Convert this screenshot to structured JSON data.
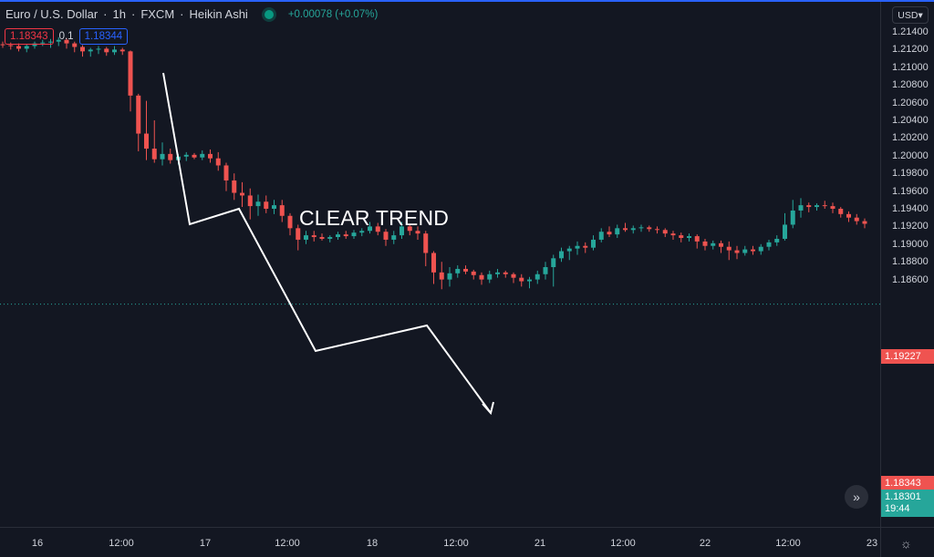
{
  "header": {
    "symbol": "Euro / U.S. Dollar",
    "interval": "1h",
    "exchange": "FXCM",
    "chart_style": "Heikin Ashi",
    "change": "+0.00078 (+0.07%)"
  },
  "trade": {
    "sell_price": "1.18343",
    "spread": "0.1",
    "buy_price": "1.18344"
  },
  "currency_button": "USD",
  "price_axis": [
    "1.21400",
    "1.21200",
    "1.21000",
    "1.20800",
    "1.20600",
    "1.20400",
    "1.20200",
    "1.20000",
    "1.19800",
    "1.19600",
    "1.19400",
    "1.19200",
    "1.19000",
    "1.18800",
    "1.18600"
  ],
  "tags": {
    "last_ha": "1.19227",
    "last_price": "1.18343",
    "bid": "1.18301",
    "countdown": "19:44"
  },
  "time_axis": [
    "16",
    "12:00",
    "17",
    "12:00",
    "18",
    "12:00",
    "21",
    "12:00",
    "22",
    "12:00",
    "23"
  ],
  "annotation": "CLEAR TREND",
  "colors": {
    "up": "#26a69a",
    "down": "#ef5350",
    "background": "#131722",
    "annotation": "#ffffff"
  },
  "icons": {
    "scroll": "double-chevron-right-icon",
    "settings": "gear-icon"
  },
  "chart_data": {
    "type": "candlestick",
    "style": "Heikin Ashi",
    "ylim": [
      1.18,
      1.216
    ],
    "candles": [
      {
        "o": 1.2126,
        "h": 1.2129,
        "l": 1.2122,
        "c": 1.2125
      },
      {
        "o": 1.2125,
        "h": 1.2128,
        "l": 1.212,
        "c": 1.2124
      },
      {
        "o": 1.2124,
        "h": 1.2127,
        "l": 1.2118,
        "c": 1.2121
      },
      {
        "o": 1.2121,
        "h": 1.2126,
        "l": 1.2117,
        "c": 1.2124
      },
      {
        "o": 1.2124,
        "h": 1.2129,
        "l": 1.2121,
        "c": 1.2127
      },
      {
        "o": 1.2127,
        "h": 1.2131,
        "l": 1.2124,
        "c": 1.2128
      },
      {
        "o": 1.2128,
        "h": 1.2132,
        "l": 1.2122,
        "c": 1.2129
      },
      {
        "o": 1.2129,
        "h": 1.2134,
        "l": 1.2124,
        "c": 1.2131
      },
      {
        "o": 1.2131,
        "h": 1.2133,
        "l": 1.2121,
        "c": 1.2127
      },
      {
        "o": 1.2127,
        "h": 1.2129,
        "l": 1.2117,
        "c": 1.2123
      },
      {
        "o": 1.2123,
        "h": 1.2125,
        "l": 1.2112,
        "c": 1.2118
      },
      {
        "o": 1.2118,
        "h": 1.2122,
        "l": 1.2112,
        "c": 1.212
      },
      {
        "o": 1.212,
        "h": 1.2124,
        "l": 1.2115,
        "c": 1.2121
      },
      {
        "o": 1.2121,
        "h": 1.2123,
        "l": 1.2113,
        "c": 1.2117
      },
      {
        "o": 1.2117,
        "h": 1.2124,
        "l": 1.2114,
        "c": 1.212
      },
      {
        "o": 1.212,
        "h": 1.2122,
        "l": 1.2114,
        "c": 1.2118
      },
      {
        "o": 1.2118,
        "h": 1.2119,
        "l": 1.205,
        "c": 1.2068
      },
      {
        "o": 1.2068,
        "h": 1.207,
        "l": 1.2005,
        "c": 1.2025
      },
      {
        "o": 1.2025,
        "h": 1.2062,
        "l": 1.1995,
        "c": 1.2008
      },
      {
        "o": 1.2008,
        "h": 1.204,
        "l": 1.1992,
        "c": 1.1996
      },
      {
        "o": 1.1996,
        "h": 1.2015,
        "l": 1.1989,
        "c": 1.2002
      },
      {
        "o": 1.2002,
        "h": 1.2008,
        "l": 1.1991,
        "c": 1.1995
      },
      {
        "o": 1.1995,
        "h": 1.2002,
        "l": 1.199,
        "c": 1.1999
      },
      {
        "o": 1.1999,
        "h": 1.2004,
        "l": 1.1994,
        "c": 1.2001
      },
      {
        "o": 1.2001,
        "h": 1.2003,
        "l": 1.1996,
        "c": 1.1998
      },
      {
        "o": 1.1998,
        "h": 1.2006,
        "l": 1.1995,
        "c": 1.2002
      },
      {
        "o": 1.2002,
        "h": 1.2007,
        "l": 1.1992,
        "c": 1.1997
      },
      {
        "o": 1.1997,
        "h": 1.2004,
        "l": 1.1983,
        "c": 1.1989
      },
      {
        "o": 1.1989,
        "h": 1.1992,
        "l": 1.196,
        "c": 1.1972
      },
      {
        "o": 1.1972,
        "h": 1.198,
        "l": 1.195,
        "c": 1.1958
      },
      {
        "o": 1.1958,
        "h": 1.197,
        "l": 1.1942,
        "c": 1.1955
      },
      {
        "o": 1.1955,
        "h": 1.1963,
        "l": 1.1928,
        "c": 1.1943
      },
      {
        "o": 1.1943,
        "h": 1.1956,
        "l": 1.1932,
        "c": 1.1948
      },
      {
        "o": 1.1948,
        "h": 1.1955,
        "l": 1.1935,
        "c": 1.194
      },
      {
        "o": 1.194,
        "h": 1.195,
        "l": 1.1934,
        "c": 1.1944
      },
      {
        "o": 1.1944,
        "h": 1.195,
        "l": 1.1925,
        "c": 1.1932
      },
      {
        "o": 1.1932,
        "h": 1.1935,
        "l": 1.191,
        "c": 1.1918
      },
      {
        "o": 1.1918,
        "h": 1.1922,
        "l": 1.1893,
        "c": 1.1905
      },
      {
        "o": 1.1905,
        "h": 1.1915,
        "l": 1.19,
        "c": 1.191
      },
      {
        "o": 1.191,
        "h": 1.1915,
        "l": 1.1903,
        "c": 1.1908
      },
      {
        "o": 1.1908,
        "h": 1.1912,
        "l": 1.1904,
        "c": 1.1906
      },
      {
        "o": 1.1906,
        "h": 1.191,
        "l": 1.1902,
        "c": 1.1908
      },
      {
        "o": 1.1908,
        "h": 1.1914,
        "l": 1.1905,
        "c": 1.1911
      },
      {
        "o": 1.1911,
        "h": 1.1915,
        "l": 1.1906,
        "c": 1.1909
      },
      {
        "o": 1.1909,
        "h": 1.1916,
        "l": 1.1906,
        "c": 1.1913
      },
      {
        "o": 1.1913,
        "h": 1.1918,
        "l": 1.1909,
        "c": 1.1915
      },
      {
        "o": 1.1915,
        "h": 1.1925,
        "l": 1.1912,
        "c": 1.192
      },
      {
        "o": 1.192,
        "h": 1.1924,
        "l": 1.191,
        "c": 1.1914
      },
      {
        "o": 1.1914,
        "h": 1.1917,
        "l": 1.1898,
        "c": 1.1905
      },
      {
        "o": 1.1905,
        "h": 1.1915,
        "l": 1.19,
        "c": 1.191
      },
      {
        "o": 1.191,
        "h": 1.1925,
        "l": 1.1906,
        "c": 1.192
      },
      {
        "o": 1.192,
        "h": 1.1922,
        "l": 1.191,
        "c": 1.1915
      },
      {
        "o": 1.1915,
        "h": 1.192,
        "l": 1.1905,
        "c": 1.1912
      },
      {
        "o": 1.1912,
        "h": 1.1915,
        "l": 1.1875,
        "c": 1.189
      },
      {
        "o": 1.189,
        "h": 1.1892,
        "l": 1.1855,
        "c": 1.1868
      },
      {
        "o": 1.1868,
        "h": 1.188,
        "l": 1.1849,
        "c": 1.186
      },
      {
        "o": 1.186,
        "h": 1.1874,
        "l": 1.1852,
        "c": 1.1867
      },
      {
        "o": 1.1867,
        "h": 1.1876,
        "l": 1.1862,
        "c": 1.1872
      },
      {
        "o": 1.1872,
        "h": 1.1876,
        "l": 1.1866,
        "c": 1.1869
      },
      {
        "o": 1.1869,
        "h": 1.1871,
        "l": 1.186,
        "c": 1.1865
      },
      {
        "o": 1.1865,
        "h": 1.1868,
        "l": 1.1854,
        "c": 1.186
      },
      {
        "o": 1.186,
        "h": 1.187,
        "l": 1.1856,
        "c": 1.1866
      },
      {
        "o": 1.1866,
        "h": 1.1872,
        "l": 1.1862,
        "c": 1.1868
      },
      {
        "o": 1.1868,
        "h": 1.187,
        "l": 1.1862,
        "c": 1.1866
      },
      {
        "o": 1.1866,
        "h": 1.1868,
        "l": 1.1856,
        "c": 1.1862
      },
      {
        "o": 1.1862,
        "h": 1.1866,
        "l": 1.1852,
        "c": 1.1858
      },
      {
        "o": 1.1858,
        "h": 1.1863,
        "l": 1.185,
        "c": 1.186
      },
      {
        "o": 1.186,
        "h": 1.187,
        "l": 1.1855,
        "c": 1.1866
      },
      {
        "o": 1.1866,
        "h": 1.188,
        "l": 1.186,
        "c": 1.1874
      },
      {
        "o": 1.1874,
        "h": 1.1888,
        "l": 1.1852,
        "c": 1.1884
      },
      {
        "o": 1.1884,
        "h": 1.1896,
        "l": 1.188,
        "c": 1.1892
      },
      {
        "o": 1.1892,
        "h": 1.1898,
        "l": 1.1882,
        "c": 1.1895
      },
      {
        "o": 1.1895,
        "h": 1.1903,
        "l": 1.1888,
        "c": 1.1898
      },
      {
        "o": 1.1898,
        "h": 1.1902,
        "l": 1.189,
        "c": 1.1896
      },
      {
        "o": 1.1896,
        "h": 1.191,
        "l": 1.1893,
        "c": 1.1905
      },
      {
        "o": 1.1905,
        "h": 1.1918,
        "l": 1.1902,
        "c": 1.1914
      },
      {
        "o": 1.1914,
        "h": 1.192,
        "l": 1.1908,
        "c": 1.1911
      },
      {
        "o": 1.1911,
        "h": 1.1922,
        "l": 1.1907,
        "c": 1.1918
      },
      {
        "o": 1.1918,
        "h": 1.1924,
        "l": 1.1914,
        "c": 1.1916
      },
      {
        "o": 1.1916,
        "h": 1.1921,
        "l": 1.1912,
        "c": 1.1918
      },
      {
        "o": 1.1918,
        "h": 1.1922,
        "l": 1.1914,
        "c": 1.1919
      },
      {
        "o": 1.1919,
        "h": 1.1921,
        "l": 1.1914,
        "c": 1.1917
      },
      {
        "o": 1.1917,
        "h": 1.192,
        "l": 1.1912,
        "c": 1.1916
      },
      {
        "o": 1.1916,
        "h": 1.1918,
        "l": 1.1908,
        "c": 1.1912
      },
      {
        "o": 1.1912,
        "h": 1.1915,
        "l": 1.1905,
        "c": 1.191
      },
      {
        "o": 1.191,
        "h": 1.1913,
        "l": 1.1902,
        "c": 1.1907
      },
      {
        "o": 1.1907,
        "h": 1.1912,
        "l": 1.1903,
        "c": 1.1909
      },
      {
        "o": 1.1909,
        "h": 1.1911,
        "l": 1.1895,
        "c": 1.1903
      },
      {
        "o": 1.1903,
        "h": 1.1906,
        "l": 1.1893,
        "c": 1.1898
      },
      {
        "o": 1.1898,
        "h": 1.1904,
        "l": 1.1894,
        "c": 1.1901
      },
      {
        "o": 1.1901,
        "h": 1.1904,
        "l": 1.189,
        "c": 1.1897
      },
      {
        "o": 1.1897,
        "h": 1.1903,
        "l": 1.1882,
        "c": 1.1893
      },
      {
        "o": 1.1893,
        "h": 1.1898,
        "l": 1.1883,
        "c": 1.189
      },
      {
        "o": 1.189,
        "h": 1.1898,
        "l": 1.1887,
        "c": 1.1894
      },
      {
        "o": 1.1894,
        "h": 1.1898,
        "l": 1.1888,
        "c": 1.1892
      },
      {
        "o": 1.1892,
        "h": 1.19,
        "l": 1.1888,
        "c": 1.1897
      },
      {
        "o": 1.1897,
        "h": 1.1905,
        "l": 1.1893,
        "c": 1.1902
      },
      {
        "o": 1.1902,
        "h": 1.191,
        "l": 1.1898,
        "c": 1.1906
      },
      {
        "o": 1.1906,
        "h": 1.1935,
        "l": 1.1904,
        "c": 1.1922
      },
      {
        "o": 1.1922,
        "h": 1.195,
        "l": 1.1918,
        "c": 1.1938
      },
      {
        "o": 1.1938,
        "h": 1.1952,
        "l": 1.193,
        "c": 1.1944
      },
      {
        "o": 1.1944,
        "h": 1.1947,
        "l": 1.1936,
        "c": 1.1942
      },
      {
        "o": 1.1942,
        "h": 1.1946,
        "l": 1.1938,
        "c": 1.1944
      },
      {
        "o": 1.1944,
        "h": 1.1949,
        "l": 1.194,
        "c": 1.1943
      },
      {
        "o": 1.1943,
        "h": 1.1947,
        "l": 1.1935,
        "c": 1.194
      },
      {
        "o": 1.194,
        "h": 1.1942,
        "l": 1.193,
        "c": 1.1934
      },
      {
        "o": 1.1934,
        "h": 1.1937,
        "l": 1.1925,
        "c": 1.193
      },
      {
        "o": 1.193,
        "h": 1.1934,
        "l": 1.1922,
        "c": 1.1926
      },
      {
        "o": 1.1926,
        "h": 1.1929,
        "l": 1.1918,
        "c": 1.1923
      }
    ]
  }
}
